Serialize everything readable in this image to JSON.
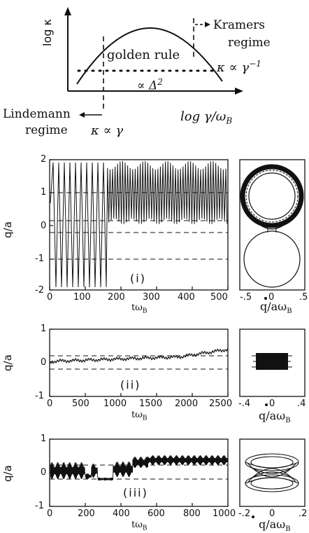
{
  "schematic": {
    "ylabel": "log κ",
    "xlabel": "log γ/ω",
    "xlabel_sub": "B",
    "kramers_line1": "Kramers",
    "kramers_line2": "regime",
    "golden_rule": "golden rule",
    "kappa_inv": "κ ∝ γ",
    "kappa_inv_exp": "−1",
    "delta": "∝ Δ",
    "delta_exp": "2",
    "lindemann_line1": "Lindemann",
    "lindemann_line2": "regime",
    "kappa_lin": "κ ∝ γ"
  },
  "panels": [
    {
      "id": "i",
      "label": "(i)",
      "ylabel": "q/a",
      "xlabel": "tω",
      "xlabel_sub": "B",
      "xticks": [
        "0",
        "100",
        "200",
        "300",
        "400",
        "500"
      ],
      "yticks": [
        "2",
        "1",
        "0",
        "-1",
        "-2"
      ],
      "phase_xticks": [
        "-.5",
        "0",
        ".5"
      ],
      "phase_xlabel": "q/aω",
      "phase_xlabel_sub": "B"
    },
    {
      "id": "ii",
      "label": "(ii)",
      "ylabel": "q/a",
      "xlabel": "tω",
      "xlabel_sub": "B",
      "xticks": [
        "0",
        "500",
        "1000",
        "1500",
        "2000",
        "2500"
      ],
      "yticks": [
        "1",
        "0",
        "-1"
      ],
      "phase_xticks": [
        "-.4",
        "0",
        ".4"
      ],
      "phase_xlabel": "q/aω",
      "phase_xlabel_sub": "B"
    },
    {
      "id": "iii",
      "label": "(iii)",
      "ylabel": "q/a",
      "xlabel": "tω",
      "xlabel_sub": "B",
      "xticks": [
        "0",
        "200",
        "400",
        "600",
        "800",
        "1000"
      ],
      "yticks": [
        "1",
        "0",
        "-1"
      ],
      "phase_xticks": [
        "-.2",
        "0",
        ".2"
      ],
      "phase_xlabel": "q/aω",
      "phase_xlabel_sub": "B"
    }
  ]
}
